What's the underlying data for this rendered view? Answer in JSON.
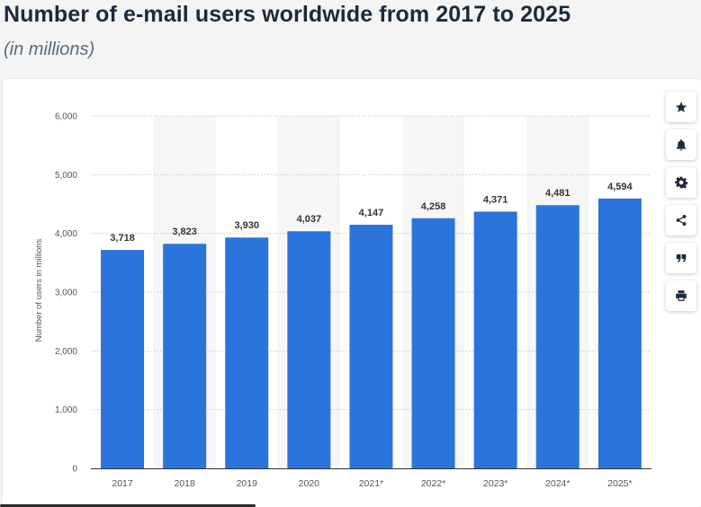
{
  "header": {
    "title": "Number of e-mail users worldwide from 2017 to 2025",
    "subtitle": "(in millions)"
  },
  "toolbar": {
    "buttons": [
      {
        "name": "favorite-button",
        "icon": "star-icon"
      },
      {
        "name": "notification-button",
        "icon": "bell-icon"
      },
      {
        "name": "settings-button",
        "icon": "gear-icon"
      },
      {
        "name": "share-button",
        "icon": "share-icon"
      },
      {
        "name": "cite-button",
        "icon": "quote-icon"
      },
      {
        "name": "print-button",
        "icon": "print-icon"
      }
    ]
  },
  "colors": {
    "bar": "#2a74dc",
    "band": "#f6f6f6",
    "grid": "#c9c9c9",
    "label": "#333333",
    "tick": "#555555"
  },
  "chart_data": {
    "type": "bar",
    "title": "Number of e-mail users worldwide from 2017 to 2025",
    "subtitle": "(in millions)",
    "categories": [
      "2017",
      "2018",
      "2019",
      "2020",
      "2021*",
      "2022*",
      "2023*",
      "2024*",
      "2025*"
    ],
    "values": [
      3718,
      3823,
      3930,
      4037,
      4147,
      4258,
      4371,
      4481,
      4594
    ],
    "value_labels": [
      "3,718",
      "3,823",
      "3,930",
      "4,037",
      "4,147",
      "4,258",
      "4,371",
      "4,481",
      "4,594"
    ],
    "ylabel": "Number of users in millions",
    "xlabel": "",
    "ylim": [
      0,
      6000
    ],
    "yticks": [
      0,
      1000,
      2000,
      3000,
      4000,
      5000,
      6000
    ],
    "ytick_labels": [
      "0",
      "1,000",
      "2,000",
      "3,000",
      "4,000",
      "5,000",
      "6,000"
    ],
    "grid": true,
    "legend": "none"
  }
}
